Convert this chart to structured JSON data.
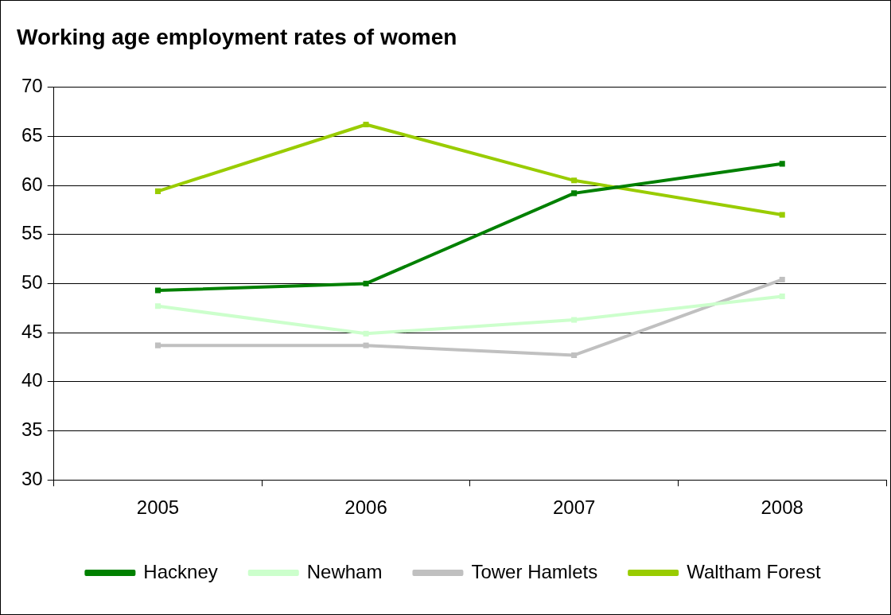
{
  "chart_data": {
    "type": "line",
    "title": "Working age employment rates of women",
    "categories": [
      "2005",
      "2006",
      "2007",
      "2008"
    ],
    "series": [
      {
        "name": "Hackney",
        "color": "#008000",
        "values": [
          49.3,
          50.0,
          59.2,
          62.2
        ]
      },
      {
        "name": "Newham",
        "color": "#ccffcc",
        "values": [
          47.7,
          44.9,
          46.3,
          48.7
        ]
      },
      {
        "name": "Tower Hamlets",
        "color": "#c0c0c0",
        "values": [
          43.7,
          43.7,
          42.7,
          50.4
        ]
      },
      {
        "name": "Waltham Forest",
        "color": "#99cc00",
        "values": [
          59.4,
          66.2,
          60.5,
          57.0
        ]
      }
    ],
    "ylim": [
      30,
      70
    ],
    "yticks": [
      30,
      35,
      40,
      45,
      50,
      55,
      60,
      65,
      70
    ],
    "grid": "y",
    "legend": "bottom",
    "marker": "square",
    "line_style": "solid"
  }
}
